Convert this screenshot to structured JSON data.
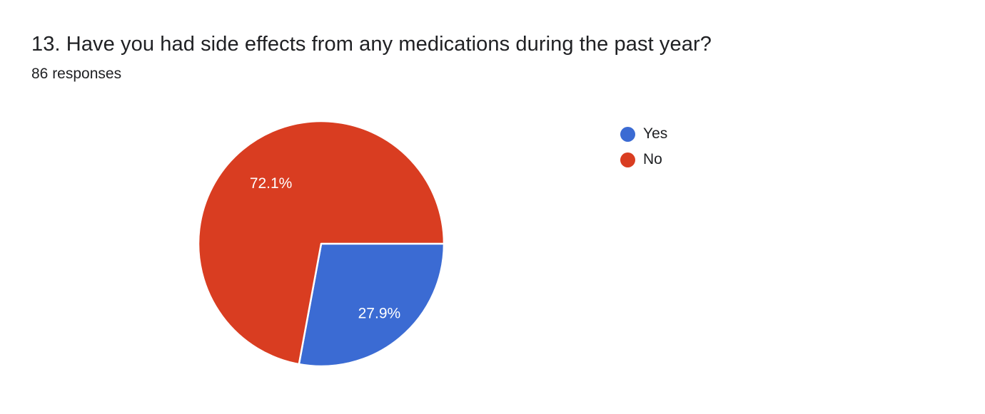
{
  "header": {
    "title": "13. Have you had side effects from any medications during the past year?",
    "subtitle": "86 responses"
  },
  "chart_data": {
    "type": "pie",
    "title": "13. Have you had side effects from any medications during the past year?",
    "subtitle": "86 responses",
    "categories": [
      "Yes",
      "No"
    ],
    "values": [
      27.9,
      72.1
    ],
    "slice_labels": [
      "27.9%",
      "72.1%"
    ],
    "colors": [
      "#3b6bd3",
      "#d93d21"
    ],
    "label_color": "#ffffff",
    "slice_border_color": "#ffffff",
    "start_angle_deg": 90,
    "direction": "clockwise",
    "label_radius_frac": [
      0.74,
      0.64
    ],
    "legend_position": "right"
  },
  "legend": {
    "items": [
      {
        "label": "Yes",
        "color": "#3b6bd3"
      },
      {
        "label": "No",
        "color": "#d93d21"
      }
    ]
  }
}
